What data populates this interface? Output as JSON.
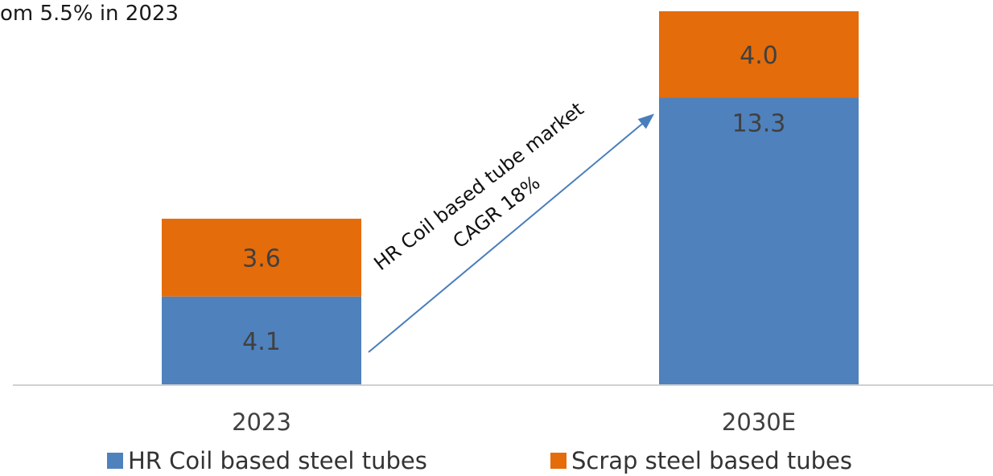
{
  "header": {
    "partial_caption": "om 5.5% in 2023"
  },
  "chart_data": {
    "type": "bar",
    "stacked": true,
    "categories": [
      "2023",
      "2030E"
    ],
    "series": [
      {
        "name": "HR Coil based steel tubes",
        "values": [
          4.1,
          13.3
        ],
        "color": "#4f81bd"
      },
      {
        "name": "Scrap steel based tubes",
        "values": [
          3.6,
          4.0
        ],
        "color": "#e46c0a"
      }
    ],
    "data_labels": [
      [
        "4.1",
        "13.3"
      ],
      [
        "3.6",
        "4.0"
      ]
    ],
    "ylim": [
      0,
      17.3
    ],
    "legend_position": "bottom",
    "grid": false,
    "annotation": {
      "lines": [
        "HR Coil based tube market",
        "CAGR 18%"
      ],
      "arrow_from": "2023",
      "arrow_to": "2030E"
    }
  }
}
